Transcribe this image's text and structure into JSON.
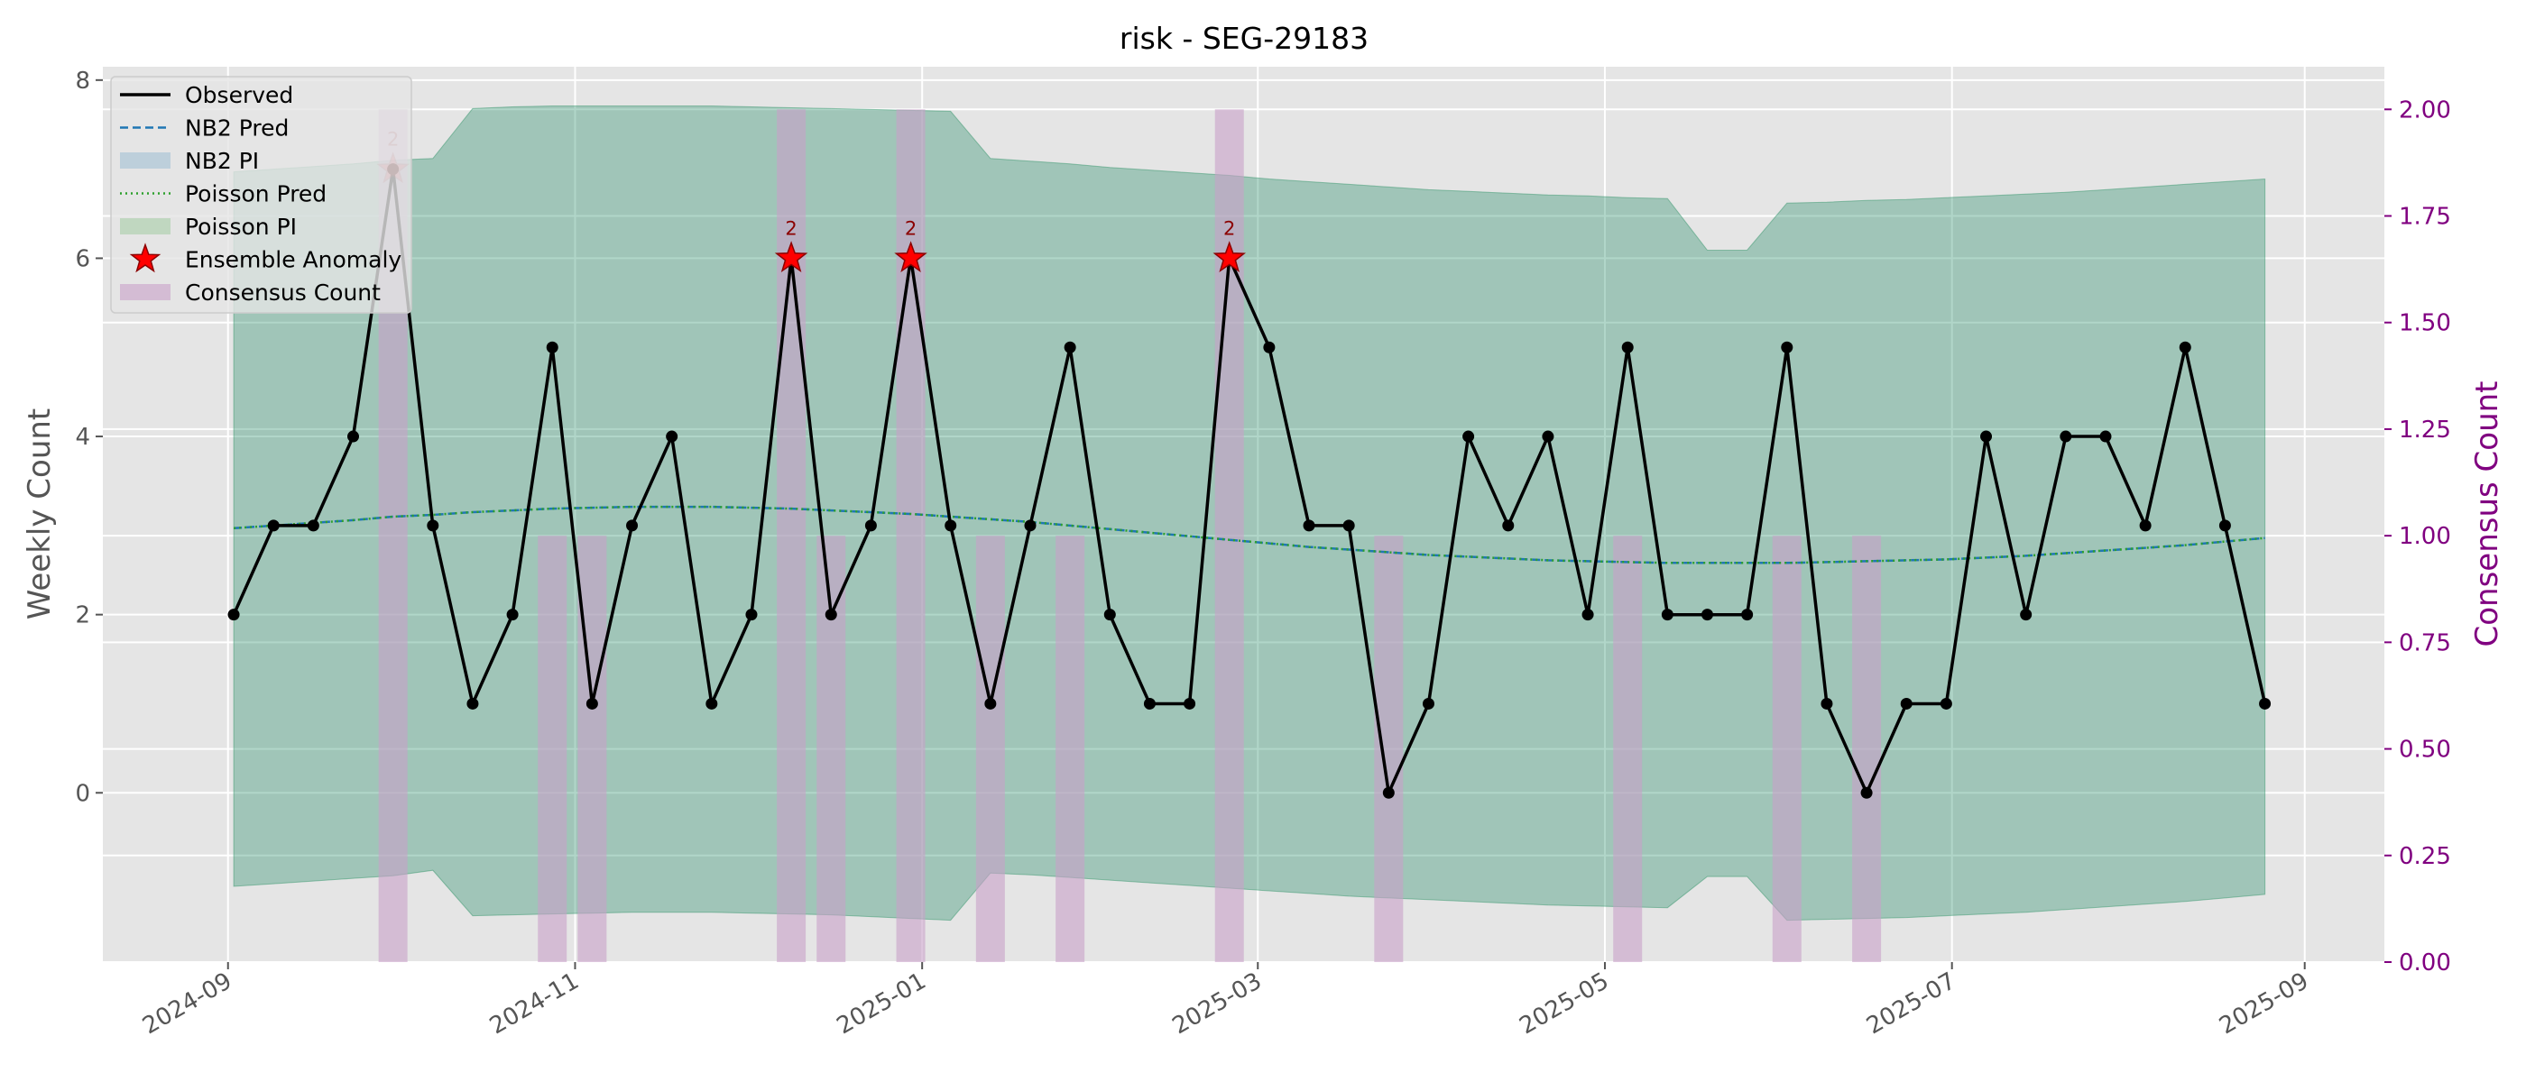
{
  "chart_data": {
    "type": "line",
    "title": "risk - SEG-29183",
    "ylabel": "Weekly Count",
    "y2label": "Consensus Count",
    "xlim": [
      "2024-08-10",
      "2025-09-15"
    ],
    "ylim": [
      -1.9,
      8.15
    ],
    "y2lim": [
      0,
      2.1
    ],
    "x_ticks": [
      "2024-09",
      "2024-11",
      "2025-01",
      "2025-03",
      "2025-05",
      "2025-07",
      "2025-09"
    ],
    "y_ticks": [
      0,
      2,
      4,
      6,
      8
    ],
    "y2_ticks": [
      "0.00",
      "0.25",
      "0.50",
      "0.75",
      "1.00",
      "1.25",
      "1.50",
      "1.75",
      "2.00"
    ],
    "grid": true,
    "legend_position": "upper-left",
    "legend": [
      "Observed",
      "NB2 Pred",
      "NB2 PI",
      "Poisson Pred",
      "Poisson PI",
      "Ensemble Anomaly",
      "Consensus Count"
    ],
    "colors": {
      "observed": "#000000",
      "nb2": "#1f77b4",
      "poisson": "#2ca02c",
      "anomaly": "#ff0000",
      "consensus": "#c8a0c8",
      "right_axis": "#800080",
      "annotation": "#8b0000"
    },
    "weeks": [
      "2024-09-02",
      "2024-09-09",
      "2024-09-16",
      "2024-09-23",
      "2024-09-30",
      "2024-10-07",
      "2024-10-14",
      "2024-10-21",
      "2024-10-28",
      "2024-11-04",
      "2024-11-11",
      "2024-11-18",
      "2024-11-25",
      "2024-12-02",
      "2024-12-09",
      "2024-12-16",
      "2024-12-23",
      "2024-12-30",
      "2025-01-06",
      "2025-01-13",
      "2025-01-20",
      "2025-01-27",
      "2025-02-03",
      "2025-02-10",
      "2025-02-17",
      "2025-02-24",
      "2025-03-03",
      "2025-03-10",
      "2025-03-17",
      "2025-03-24",
      "2025-03-31",
      "2025-04-07",
      "2025-04-14",
      "2025-04-21",
      "2025-04-28",
      "2025-05-05",
      "2025-05-12",
      "2025-05-19",
      "2025-05-26",
      "2025-06-02",
      "2025-06-09",
      "2025-06-16",
      "2025-06-23",
      "2025-06-30",
      "2025-07-07",
      "2025-07-14",
      "2025-07-21",
      "2025-07-28",
      "2025-08-04",
      "2025-08-11",
      "2025-08-18",
      "2025-08-25"
    ],
    "observed": [
      2,
      3,
      3,
      4,
      7,
      3,
      1,
      2,
      5,
      1,
      3,
      4,
      1,
      2,
      6,
      2,
      3,
      6,
      3,
      1,
      3,
      5,
      2,
      1,
      1,
      6,
      5,
      3,
      3,
      0,
      1,
      4,
      3,
      4,
      2,
      5,
      2,
      2,
      2,
      5,
      1,
      0,
      1,
      1,
      4,
      2,
      4,
      4,
      3,
      5,
      3,
      1
    ],
    "nb2_pred": [
      2.97,
      3.0,
      3.03,
      3.06,
      3.1,
      3.12,
      3.15,
      3.17,
      3.19,
      3.2,
      3.21,
      3.21,
      3.21,
      3.2,
      3.19,
      3.17,
      3.15,
      3.13,
      3.1,
      3.07,
      3.04,
      3.0,
      2.96,
      2.92,
      2.88,
      2.84,
      2.8,
      2.76,
      2.73,
      2.7,
      2.67,
      2.65,
      2.63,
      2.61,
      2.6,
      2.59,
      2.58,
      2.58,
      2.58,
      2.58,
      2.59,
      2.6,
      2.61,
      2.62,
      2.64,
      2.66,
      2.69,
      2.72,
      2.75,
      2.78,
      2.82,
      2.86
    ],
    "poisson_pred": [
      2.97,
      3.0,
      3.03,
      3.06,
      3.1,
      3.12,
      3.15,
      3.17,
      3.19,
      3.2,
      3.21,
      3.21,
      3.21,
      3.2,
      3.19,
      3.17,
      3.15,
      3.13,
      3.1,
      3.07,
      3.04,
      3.0,
      2.96,
      2.92,
      2.88,
      2.84,
      2.8,
      2.76,
      2.73,
      2.7,
      2.67,
      2.65,
      2.63,
      2.61,
      2.6,
      2.59,
      2.58,
      2.58,
      2.58,
      2.58,
      2.59,
      2.6,
      2.61,
      2.62,
      2.64,
      2.66,
      2.69,
      2.72,
      2.75,
      2.78,
      2.82,
      2.86
    ],
    "nb2_pi_lower": [
      -1.05,
      -1.02,
      -0.99,
      -0.96,
      -0.93,
      -0.87,
      -1.38,
      -1.37,
      -1.36,
      -1.35,
      -1.34,
      -1.34,
      -1.34,
      -1.35,
      -1.36,
      -1.37,
      -1.39,
      -1.41,
      -1.43,
      -0.9,
      -0.92,
      -0.95,
      -0.98,
      -1.01,
      -1.04,
      -1.07,
      -1.1,
      -1.13,
      -1.16,
      -1.18,
      -1.2,
      -1.22,
      -1.24,
      -1.26,
      -1.27,
      -1.28,
      -1.29,
      -0.94,
      -0.94,
      -1.43,
      -1.42,
      -1.41,
      -1.4,
      -1.38,
      -1.36,
      -1.34,
      -1.31,
      -1.28,
      -1.25,
      -1.22,
      -1.18,
      -1.14
    ],
    "nb2_pi_upper": [
      6.97,
      7.0,
      7.03,
      7.06,
      7.1,
      7.12,
      7.68,
      7.7,
      7.71,
      7.71,
      7.71,
      7.71,
      7.71,
      7.7,
      7.69,
      7.68,
      7.67,
      7.66,
      7.65,
      7.12,
      7.09,
      7.06,
      7.02,
      6.99,
      6.96,
      6.93,
      6.89,
      6.86,
      6.83,
      6.8,
      6.77,
      6.75,
      6.73,
      6.71,
      6.7,
      6.68,
      6.67,
      6.09,
      6.09,
      6.62,
      6.63,
      6.65,
      6.66,
      6.68,
      6.7,
      6.72,
      6.74,
      6.77,
      6.8,
      6.83,
      6.86,
      6.89
    ],
    "poisson_pi_lower": [
      -1.05,
      -1.02,
      -0.99,
      -0.96,
      -0.93,
      -0.87,
      -1.38,
      -1.37,
      -1.36,
      -1.35,
      -1.34,
      -1.34,
      -1.34,
      -1.35,
      -1.36,
      -1.37,
      -1.39,
      -1.41,
      -1.43,
      -0.9,
      -0.92,
      -0.95,
      -0.98,
      -1.01,
      -1.04,
      -1.07,
      -1.1,
      -1.13,
      -1.16,
      -1.18,
      -1.2,
      -1.22,
      -1.24,
      -1.26,
      -1.27,
      -1.28,
      -1.29,
      -0.94,
      -0.94,
      -1.43,
      -1.42,
      -1.41,
      -1.4,
      -1.38,
      -1.36,
      -1.34,
      -1.31,
      -1.28,
      -1.25,
      -1.22,
      -1.18,
      -1.14
    ],
    "poisson_pi_upper": [
      6.97,
      7.0,
      7.03,
      7.06,
      7.1,
      7.12,
      7.68,
      7.7,
      7.71,
      7.71,
      7.71,
      7.71,
      7.71,
      7.7,
      7.69,
      7.68,
      7.67,
      7.66,
      7.65,
      7.12,
      7.09,
      7.06,
      7.02,
      6.99,
      6.96,
      6.93,
      6.89,
      6.86,
      6.83,
      6.8,
      6.77,
      6.75,
      6.73,
      6.71,
      6.7,
      6.68,
      6.67,
      6.09,
      6.09,
      6.62,
      6.63,
      6.65,
      6.66,
      6.68,
      6.7,
      6.72,
      6.74,
      6.77,
      6.8,
      6.83,
      6.86,
      6.89
    ],
    "consensus_count": [
      {
        "week": "2024-09-30",
        "value": 2
      },
      {
        "week": "2024-10-28",
        "value": 1
      },
      {
        "week": "2024-11-04",
        "value": 1
      },
      {
        "week": "2024-12-09",
        "value": 2
      },
      {
        "week": "2024-12-16",
        "value": 1
      },
      {
        "week": "2024-12-30",
        "value": 2
      },
      {
        "week": "2025-01-13",
        "value": 1
      },
      {
        "week": "2025-01-27",
        "value": 1
      },
      {
        "week": "2025-02-24",
        "value": 2
      },
      {
        "week": "2025-03-24",
        "value": 1
      },
      {
        "week": "2025-05-05",
        "value": 1
      },
      {
        "week": "2025-06-02",
        "value": 1
      },
      {
        "week": "2025-06-16",
        "value": 1
      }
    ],
    "anomalies": [
      {
        "week": "2024-09-30",
        "value": 7,
        "label": "2",
        "faded": true
      },
      {
        "week": "2024-12-09",
        "value": 6,
        "label": "2",
        "faded": false
      },
      {
        "week": "2024-12-30",
        "value": 6,
        "label": "2",
        "faded": false
      },
      {
        "week": "2025-02-24",
        "value": 6,
        "label": "2",
        "faded": false
      }
    ]
  }
}
